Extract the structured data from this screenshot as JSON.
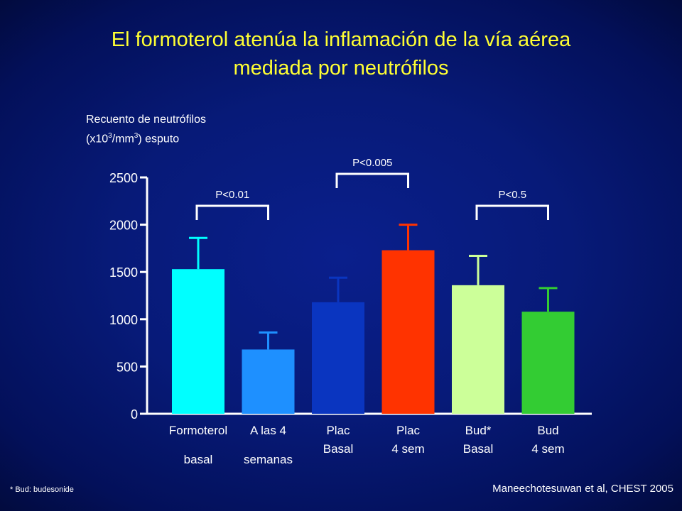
{
  "title": {
    "line1": "El formoterol atenúa la inflamación de la vía aérea",
    "line2": "mediada por neutrófilos"
  },
  "ylabel": {
    "line1": "Recuento de neutrófilos",
    "line2_a": "(x10",
    "line2_sup1": "3",
    "line2_b": "/mm",
    "line2_sup2": "3",
    "line2_c": ") esputo"
  },
  "footnote": "* Bud: budesonide",
  "citation": "Maneechotesuwan et al, CHEST 2005",
  "chart_data": {
    "type": "bar",
    "ylim": [
      0,
      2500
    ],
    "yticks": [
      "0",
      "500",
      "1000",
      "1500",
      "2000",
      "2500"
    ],
    "bars": [
      {
        "label1": "Formoterol",
        "label2": "basal",
        "value": 1530,
        "error": 1860,
        "color": "#00ffff"
      },
      {
        "label1": "A las 4",
        "label2": "semanas",
        "value": 680,
        "error": 860,
        "color": "#1e90ff"
      },
      {
        "label1": "Plac",
        "label2": "Basal",
        "value": 1180,
        "error": 1440,
        "color": "#0a35c0"
      },
      {
        "label1": "Plac",
        "label2": "4 sem",
        "value": 1730,
        "error": 2000,
        "color": "#ff3300"
      },
      {
        "label1": "Bud*",
        "label2": "Basal",
        "value": 1360,
        "error": 1670,
        "color": "#ccff99"
      },
      {
        "label1": "Bud",
        "label2": "4 sem",
        "value": 1080,
        "error": 1330,
        "color": "#33cc33"
      }
    ],
    "comparisons": [
      {
        "from": 0,
        "to": 1,
        "label": "P<0.01",
        "level": 2200
      },
      {
        "from": 2,
        "to": 3,
        "label": "P<0.005",
        "level": 2500
      },
      {
        "from": 4,
        "to": 5,
        "label": "P<0.5",
        "level": 2200
      }
    ]
  }
}
